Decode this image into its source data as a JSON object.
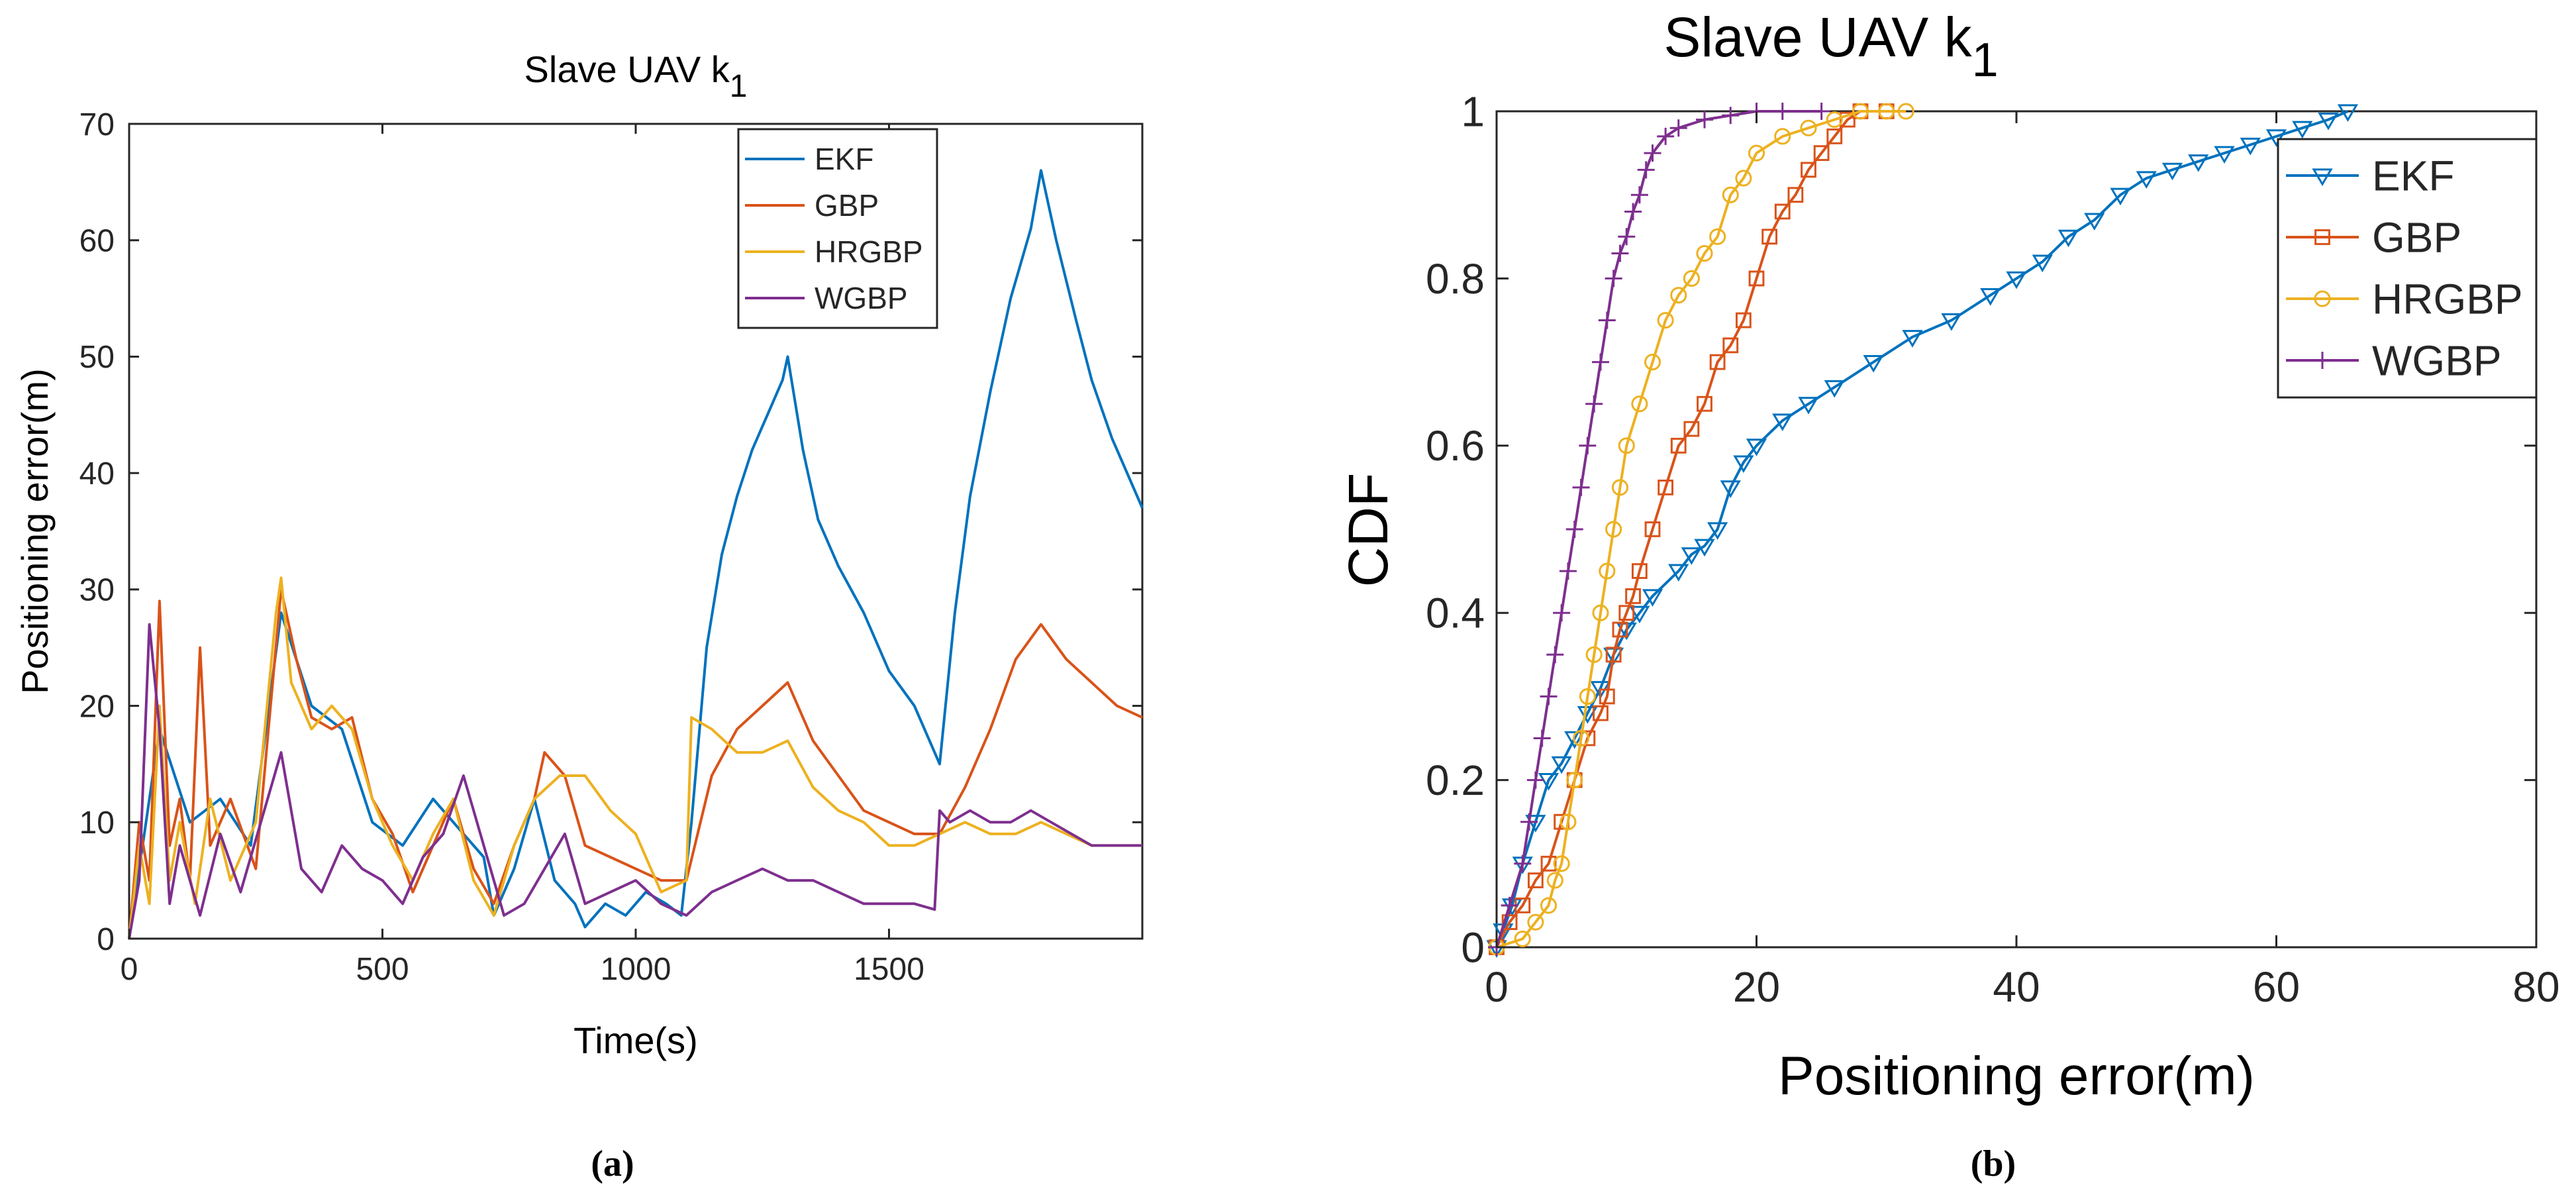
{
  "chart_data": [
    {
      "type": "line",
      "title": "Slave UAV k",
      "title_sub": "1",
      "xlabel": "Time(s)",
      "ylabel": "Positioning error(m)",
      "xlim": [
        0,
        2000
      ],
      "ylim": [
        0,
        70
      ],
      "xticks": [
        0,
        500,
        1000,
        1500
      ],
      "yticks": [
        0,
        10,
        20,
        30,
        40,
        50,
        60,
        70
      ],
      "legend_position": "top-right",
      "series": [
        {
          "name": "EKF",
          "color": "#0072BD",
          "x": [
            0,
            60,
            120,
            180,
            240,
            300,
            360,
            420,
            480,
            540,
            600,
            660,
            700,
            720,
            760,
            800,
            840,
            880,
            900,
            940,
            980,
            1020,
            1060,
            1090,
            1110,
            1140,
            1170,
            1200,
            1230,
            1260,
            1290,
            1300,
            1330,
            1360,
            1400,
            1450,
            1500,
            1550,
            1600,
            1630,
            1660,
            1700,
            1740,
            1780,
            1800,
            1830,
            1870,
            1900,
            1940,
            1970,
            2000
          ],
          "y": [
            0,
            18,
            10,
            12,
            8,
            28,
            20,
            18,
            10,
            8,
            12,
            9,
            7,
            2,
            6,
            12,
            5,
            3,
            1,
            3,
            2,
            4,
            3,
            2,
            10,
            25,
            33,
            38,
            42,
            45,
            48,
            50,
            42,
            36,
            32,
            28,
            23,
            20,
            15,
            28,
            38,
            47,
            55,
            61,
            66,
            60,
            53,
            48,
            43,
            40,
            37
          ]
        },
        {
          "name": "GBP",
          "color": "#D95319",
          "x": [
            0,
            20,
            40,
            60,
            80,
            100,
            120,
            140,
            160,
            200,
            250,
            300,
            330,
            360,
            400,
            440,
            480,
            520,
            560,
            600,
            640,
            680,
            720,
            760,
            800,
            820,
            860,
            900,
            950,
            1000,
            1050,
            1100,
            1150,
            1200,
            1250,
            1300,
            1350,
            1400,
            1450,
            1500,
            1550,
            1600,
            1650,
            1700,
            1750,
            1800,
            1850,
            1900,
            1950,
            2000
          ],
          "y": [
            0,
            10,
            5,
            29,
            8,
            12,
            5,
            25,
            8,
            12,
            6,
            30,
            24,
            19,
            18,
            19,
            12,
            9,
            4,
            8,
            12,
            6,
            3,
            8,
            12,
            16,
            14,
            8,
            7,
            6,
            5,
            5,
            14,
            18,
            20,
            22,
            17,
            14,
            11,
            10,
            9,
            9,
            13,
            18,
            24,
            27,
            24,
            22,
            20,
            19
          ]
        },
        {
          "name": "HRGBP",
          "color": "#EDB120",
          "x": [
            0,
            20,
            40,
            60,
            80,
            100,
            130,
            160,
            200,
            250,
            290,
            300,
            320,
            360,
            400,
            440,
            480,
            520,
            560,
            600,
            640,
            680,
            720,
            760,
            800,
            850,
            900,
            950,
            1000,
            1050,
            1100,
            1110,
            1150,
            1200,
            1250,
            1300,
            1350,
            1400,
            1450,
            1500,
            1550,
            1600,
            1650,
            1700,
            1750,
            1800,
            1850,
            1900,
            1950,
            2000
          ],
          "y": [
            0,
            8,
            3,
            20,
            5,
            10,
            3,
            12,
            5,
            10,
            28,
            31,
            22,
            18,
            20,
            18,
            12,
            8,
            5,
            9,
            12,
            5,
            2,
            8,
            12,
            14,
            14,
            11,
            9,
            4,
            5,
            19,
            18,
            16,
            16,
            17,
            13,
            11,
            10,
            8,
            8,
            9,
            10,
            9,
            9,
            10,
            9,
            8,
            8,
            8
          ]
        },
        {
          "name": "WGBP",
          "color": "#7E2F8E",
          "x": [
            0,
            20,
            40,
            60,
            80,
            100,
            140,
            180,
            220,
            260,
            300,
            340,
            380,
            420,
            460,
            500,
            540,
            580,
            620,
            660,
            700,
            740,
            780,
            820,
            860,
            900,
            950,
            1000,
            1050,
            1100,
            1150,
            1200,
            1250,
            1300,
            1350,
            1400,
            1450,
            1500,
            1550,
            1590,
            1600,
            1620,
            1660,
            1700,
            1740,
            1780,
            1820,
            1860,
            1900,
            1950,
            2000
          ],
          "y": [
            0,
            5,
            27,
            18,
            3,
            8,
            2,
            9,
            4,
            10,
            16,
            6,
            4,
            8,
            6,
            5,
            3,
            7,
            9,
            14,
            8,
            2,
            3,
            6,
            9,
            3,
            4,
            5,
            3,
            2,
            4,
            5,
            6,
            5,
            5,
            4,
            3,
            3,
            3,
            2.5,
            11,
            10,
            11,
            10,
            10,
            11,
            10,
            9,
            8,
            8,
            8
          ]
        }
      ]
    },
    {
      "type": "line",
      "title": "Slave UAV k",
      "title_sub": "1",
      "xlabel": "Positioning error(m)",
      "ylabel": "CDF",
      "xlim": [
        0,
        80
      ],
      "ylim": [
        0,
        1
      ],
      "xticks": [
        0,
        20,
        40,
        60,
        80
      ],
      "yticks": [
        "0",
        "0.2",
        "0.4",
        "0.6",
        "0.8",
        "1"
      ],
      "legend_position": "top-right",
      "series": [
        {
          "name": "EKF",
          "color": "#0072BD",
          "marker": "triangle-down",
          "x": [
            0,
            0.5,
            1.2,
            2,
            3,
            4,
            5,
            6,
            7,
            8,
            9,
            10,
            11,
            12,
            14,
            15,
            16,
            17,
            18,
            19,
            20,
            22,
            24,
            26,
            29,
            32,
            35,
            38,
            40,
            42,
            44,
            46,
            48,
            50,
            52,
            54,
            56,
            58,
            60,
            62,
            64,
            65.5
          ],
          "y": [
            0,
            0.02,
            0.05,
            0.1,
            0.15,
            0.2,
            0.22,
            0.25,
            0.28,
            0.31,
            0.35,
            0.38,
            0.4,
            0.42,
            0.45,
            0.47,
            0.48,
            0.5,
            0.55,
            0.58,
            0.6,
            0.63,
            0.65,
            0.67,
            0.7,
            0.73,
            0.75,
            0.78,
            0.8,
            0.82,
            0.85,
            0.87,
            0.9,
            0.92,
            0.93,
            0.94,
            0.95,
            0.96,
            0.97,
            0.98,
            0.99,
            1.0
          ]
        },
        {
          "name": "GBP",
          "color": "#D95319",
          "marker": "square",
          "x": [
            0,
            1,
            2,
            3,
            4,
            5,
            6,
            7,
            8,
            8.5,
            9,
            9.5,
            10,
            10.5,
            11,
            12,
            13,
            14,
            15,
            16,
            17,
            18,
            19,
            20,
            21,
            22,
            23,
            24,
            25,
            26,
            27,
            28,
            30
          ],
          "y": [
            0,
            0.03,
            0.05,
            0.08,
            0.1,
            0.15,
            0.2,
            0.25,
            0.28,
            0.3,
            0.35,
            0.38,
            0.4,
            0.42,
            0.45,
            0.5,
            0.55,
            0.6,
            0.62,
            0.65,
            0.7,
            0.72,
            0.75,
            0.8,
            0.85,
            0.88,
            0.9,
            0.93,
            0.95,
            0.97,
            0.99,
            1.0,
            1.0
          ]
        },
        {
          "name": "HRGBP",
          "color": "#EDB120",
          "marker": "circle",
          "x": [
            0,
            2,
            3,
            4,
            4.5,
            5,
            5.5,
            6,
            6.5,
            7,
            7.5,
            8,
            8.5,
            9,
            9.5,
            10,
            11,
            12,
            13,
            14,
            15,
            16,
            17,
            18,
            19,
            20,
            22,
            24,
            26,
            28,
            30,
            31.5
          ],
          "y": [
            0,
            0.01,
            0.03,
            0.05,
            0.08,
            0.1,
            0.15,
            0.2,
            0.25,
            0.3,
            0.35,
            0.4,
            0.45,
            0.5,
            0.55,
            0.6,
            0.65,
            0.7,
            0.75,
            0.78,
            0.8,
            0.83,
            0.85,
            0.9,
            0.92,
            0.95,
            0.97,
            0.98,
            0.99,
            1.0,
            1.0,
            1.0
          ]
        },
        {
          "name": "WGBP",
          "color": "#7E2F8E",
          "marker": "plus",
          "x": [
            0,
            1,
            2,
            2.5,
            3,
            3.5,
            4,
            4.5,
            5,
            5.5,
            6,
            6.5,
            7,
            7.5,
            8,
            8.5,
            9,
            9.5,
            10,
            10.5,
            11,
            11.5,
            12,
            13,
            14,
            16,
            18,
            20,
            22,
            25
          ],
          "y": [
            0,
            0.05,
            0.1,
            0.15,
            0.2,
            0.25,
            0.3,
            0.35,
            0.4,
            0.45,
            0.5,
            0.55,
            0.6,
            0.65,
            0.7,
            0.75,
            0.8,
            0.83,
            0.85,
            0.88,
            0.9,
            0.93,
            0.95,
            0.97,
            0.98,
            0.99,
            0.995,
            1.0,
            1.0,
            1.0
          ]
        }
      ]
    }
  ],
  "captions": [
    "(a)",
    "(b)"
  ]
}
